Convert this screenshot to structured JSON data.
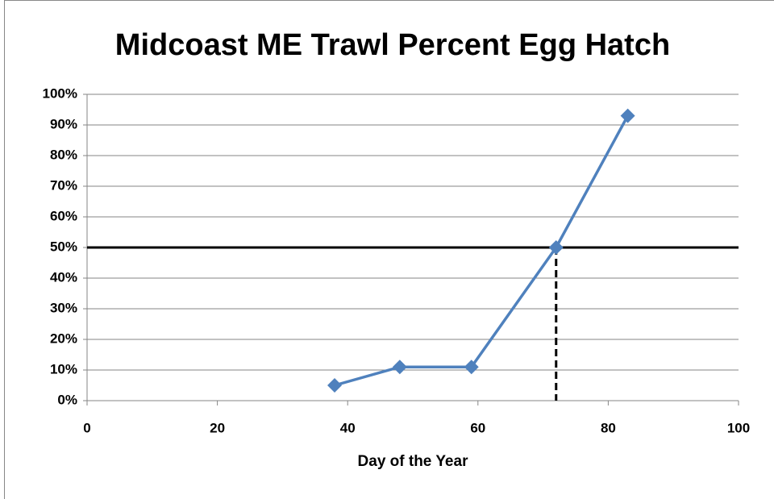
{
  "chart_data": {
    "type": "line",
    "title": "Midcoast ME Trawl Percent Egg Hatch",
    "x_label": "Day of the Year",
    "x": [
      38,
      48,
      59,
      72,
      83
    ],
    "values": [
      5,
      11,
      11,
      50,
      93
    ],
    "color": "#4f81bd",
    "xlim": [
      0,
      100
    ],
    "xticks": [
      0,
      20,
      40,
      60,
      80,
      100
    ],
    "ylim": [
      0,
      100
    ],
    "yticks": [
      {
        "value": 0,
        "label": "0%"
      },
      {
        "value": 10,
        "label": "10%"
      },
      {
        "value": 20,
        "label": "20%"
      },
      {
        "value": 30,
        "label": "30%"
      },
      {
        "value": 40,
        "label": "40%"
      },
      {
        "value": 50,
        "label": "50%"
      },
      {
        "value": 60,
        "label": "60%"
      },
      {
        "value": 70,
        "label": "70%"
      },
      {
        "value": 80,
        "label": "80%"
      },
      {
        "value": 90,
        "label": "90%"
      },
      {
        "value": 100,
        "label": "100%"
      }
    ],
    "grid": true,
    "reference": {
      "y": 50,
      "x": 72
    }
  }
}
